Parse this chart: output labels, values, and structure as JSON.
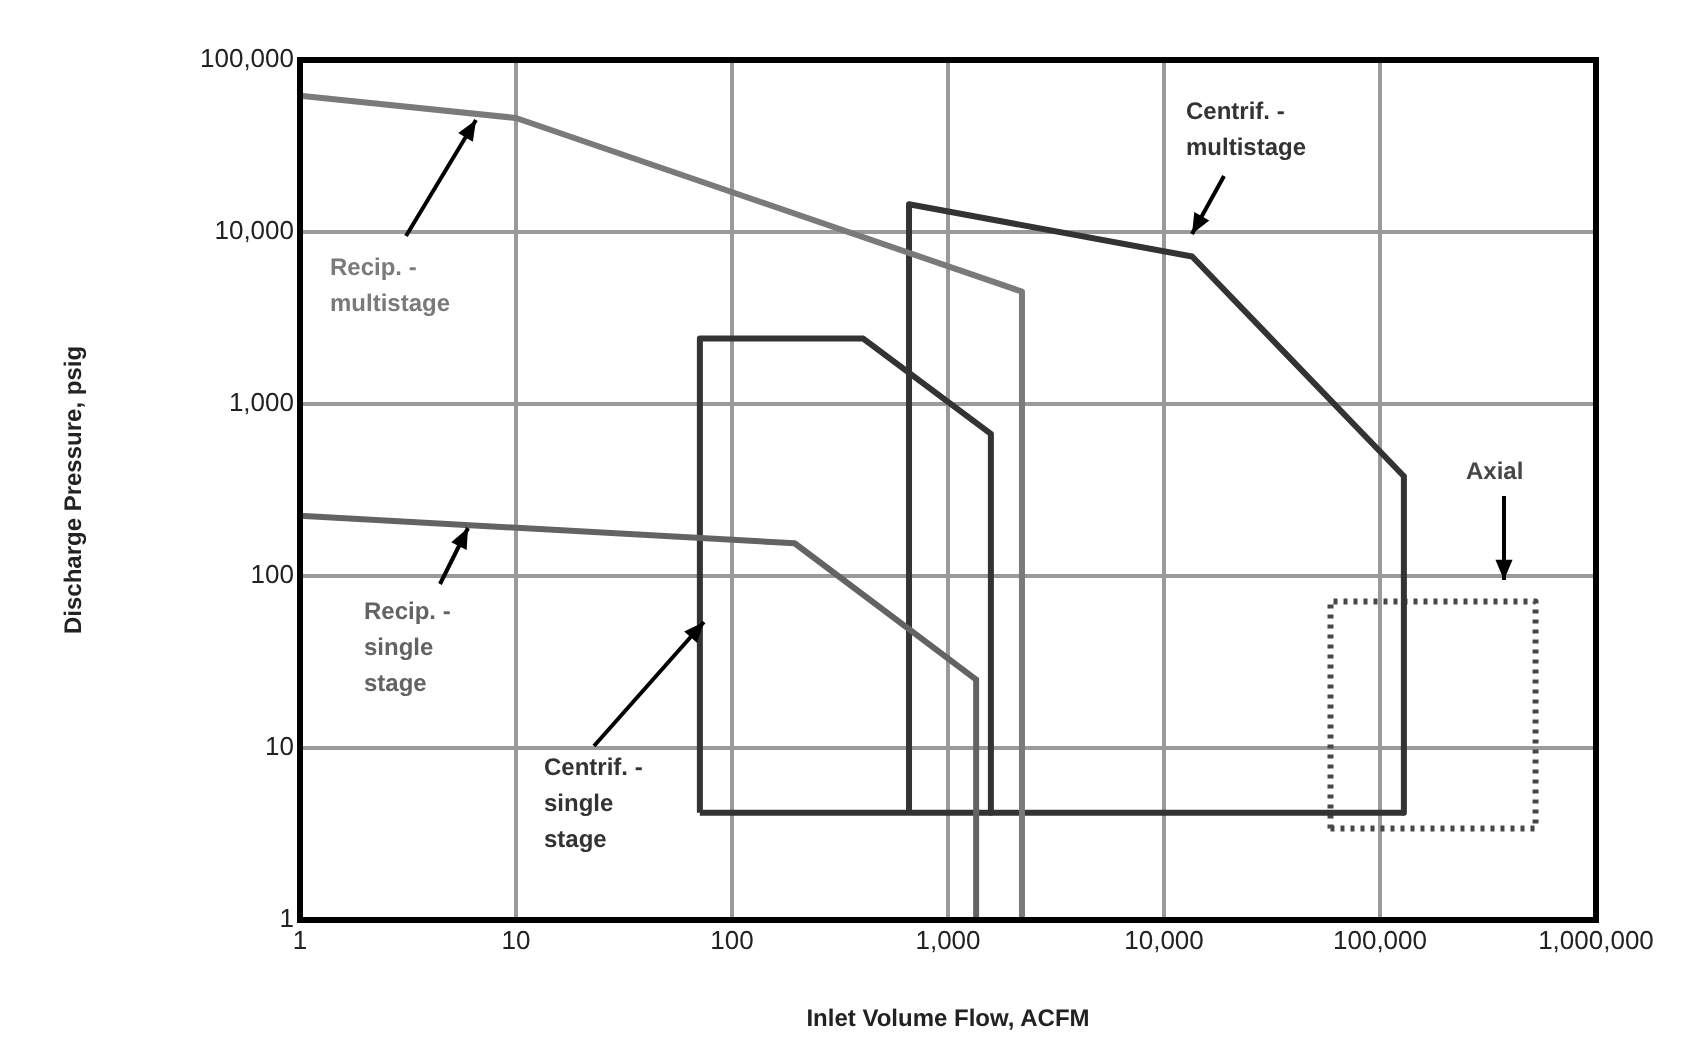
{
  "chart_data": {
    "type": "line",
    "xlabel": "Inlet Volume Flow, ACFM",
    "ylabel": "Discharge Pressure, psig",
    "series": [
      {
        "name": "Recip. - multistage",
        "color": "#7a7a7a",
        "x": [
          1,
          10,
          2200,
          2200
        ],
        "values": [
          62000,
          46000,
          4500,
          1
        ]
      },
      {
        "name": "Recip. - single stage",
        "color": "#636363",
        "x": [
          1,
          195,
          1350,
          1350
        ],
        "values": [
          224,
          155,
          25,
          1
        ]
      },
      {
        "name": "Centrif. - single stage",
        "color": "#333333",
        "x": [
          71,
          71,
          405,
          1580,
          1580
        ],
        "values": [
          4.2,
          2400,
          2400,
          670,
          4.2
        ]
      },
      {
        "name": "Centrif. - multistage",
        "color": "#333333",
        "x": [
          660,
          660,
          13500,
          129000,
          129000
        ],
        "values": [
          4.2,
          14500,
          7200,
          380,
          4.2
        ]
      },
      {
        "color": "#333333",
        "x": [
          71,
          129000
        ],
        "values": [
          4.2,
          4.2
        ]
      },
      {
        "name": "Axial",
        "color": "#474747",
        "line_style": "dotted",
        "x": [
          59000,
          59000,
          525000,
          525000
        ],
        "values": [
          3.4,
          71,
          71,
          3.4
        ]
      },
      {
        "color": "#474747",
        "line_style": "dotted",
        "x": [
          59000,
          525000
        ],
        "values": [
          3.4,
          3.4
        ]
      }
    ],
    "log": "xy",
    "xlim": [
      1,
      1000000
    ],
    "ylim": [
      1,
      100000
    ],
    "xticks": [
      1,
      10,
      100,
      {
        "value": 1000,
        "label": "1,000"
      },
      {
        "value": 10000,
        "label": "10,000"
      },
      {
        "value": 100000,
        "label": "100,000"
      },
      {
        "value": 1000000,
        "label": "1,000,000"
      }
    ],
    "yticks": [
      1,
      10,
      100,
      {
        "value": 1000,
        "label": "1,000"
      },
      {
        "value": 10000,
        "label": "10,000"
      },
      {
        "value": 100000,
        "label": "100,000"
      }
    ],
    "grid": true,
    "legend": false,
    "marker": "none",
    "line_style": "solid"
  }
}
